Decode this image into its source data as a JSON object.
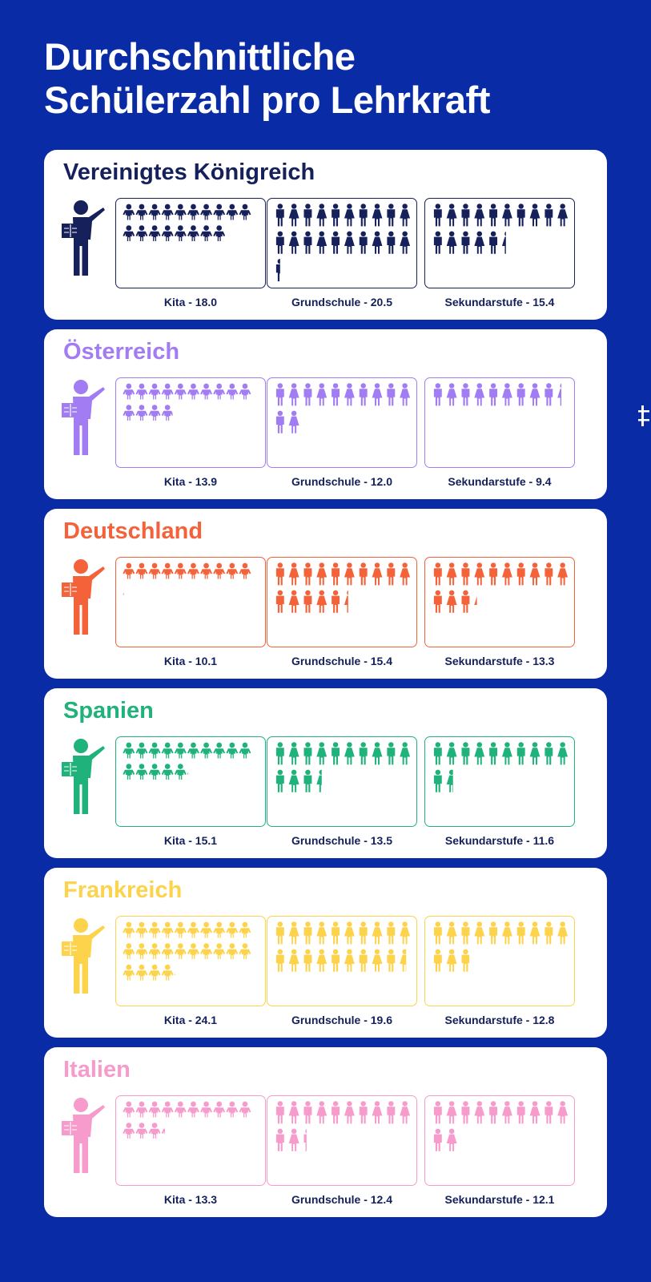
{
  "title_lines": [
    "Durchschnittliche",
    "Schülerzahl pro Lehrkraft"
  ],
  "chart_data": {
    "type": "pictogram",
    "title": "Durchschnittliche Schülerzahl pro Lehrkraft",
    "categories": [
      "Kita",
      "Grundschule",
      "Sekundarstufe"
    ],
    "series": [
      {
        "name": "Vereinigtes Königreich",
        "color": "#16205a",
        "values": [
          18.0,
          20.5,
          15.4
        ],
        "labels": [
          "Kita - 18.0",
          "Grundschule - 20.5",
          "Sekundarstufe - 15.4"
        ]
      },
      {
        "name": "Österreich",
        "color": "#a27cf2",
        "values": [
          13.9,
          12.0,
          9.4
        ],
        "labels": [
          "Kita - 13.9",
          "Grundschule - 12.0",
          "Sekundarstufe - 9.4"
        ]
      },
      {
        "name": "Deutschland",
        "color": "#f4623a",
        "values": [
          10.1,
          15.4,
          13.3
        ],
        "labels": [
          "Kita - 10.1",
          "Grundschule - 15.4",
          "Sekundarstufe - 13.3"
        ]
      },
      {
        "name": "Spanien",
        "color": "#1fb27a",
        "values": [
          15.1,
          13.5,
          11.6
        ],
        "labels": [
          "Kita - 15.1",
          "Grundschule - 13.5",
          "Sekundarstufe - 11.6"
        ]
      },
      {
        "name": "Frankreich",
        "color": "#fdd34c",
        "values": [
          24.1,
          19.6,
          12.8
        ],
        "labels": [
          "Kita - 24.1",
          "Grundschule - 19.6",
          "Sekundarstufe - 12.8"
        ]
      },
      {
        "name": "Italien",
        "color": "#f69bcb",
        "values": [
          13.3,
          12.4,
          12.1
        ],
        "labels": [
          "Kita - 13.3",
          "Grundschule - 12.4",
          "Sekundarstufe - 12.1"
        ]
      }
    ]
  },
  "icons": {
    "teacher": "teacher-pointer-icon",
    "kita": "toddler-icon",
    "grundschule": "pupil-icon",
    "sekundarstufe": "student-icon"
  }
}
